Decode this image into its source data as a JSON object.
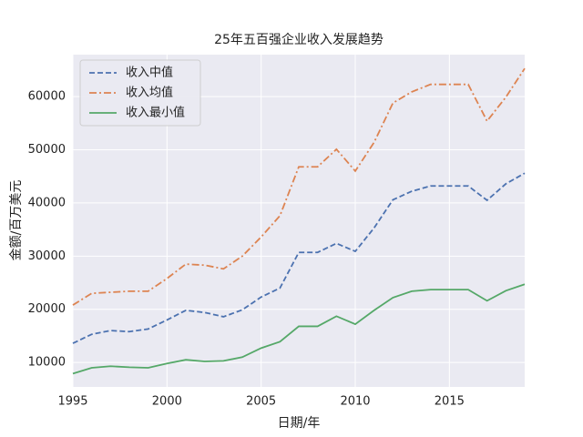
{
  "chart_data": {
    "type": "line",
    "title": "25年五百强企业收入发展趋势",
    "x_label": "日期/年",
    "y_label": "金额/百万美元",
    "x": [
      1995,
      1996,
      1997,
      1998,
      1999,
      2000,
      2001,
      2002,
      2003,
      2004,
      2005,
      2006,
      2007,
      2008,
      2009,
      2010,
      2011,
      2012,
      2013,
      2014,
      2015,
      2016,
      2017,
      2018,
      2019
    ],
    "series": [
      {
        "name": "收入中值",
        "color": "#4c72b0",
        "linestyle": "dashed",
        "values": [
          13600,
          15300,
          16000,
          15800,
          16300,
          18000,
          19800,
          19400,
          18600,
          19900,
          22300,
          24000,
          30700,
          30700,
          32400,
          30900,
          35300,
          40600,
          42200,
          43200,
          43200,
          43200,
          40500,
          43600,
          45600
        ]
      },
      {
        "name": "收入均值",
        "color": "#dd8452",
        "linestyle": "dashdot",
        "values": [
          20800,
          23000,
          23200,
          23400,
          23400,
          25800,
          28500,
          28300,
          27600,
          30000,
          33600,
          37600,
          46800,
          46800,
          50100,
          46000,
          51400,
          58800,
          60900,
          62300,
          62300,
          62300,
          55400,
          59900,
          65300
        ]
      },
      {
        "name": "收入最小值",
        "color": "#55a868",
        "linestyle": "solid",
        "values": [
          7900,
          9000,
          9300,
          9100,
          9000,
          9800,
          10500,
          10200,
          10300,
          11000,
          12700,
          13900,
          16800,
          16800,
          18700,
          17200,
          19800,
          22200,
          23400,
          23700,
          23700,
          23700,
          21600,
          23500,
          24700
        ]
      }
    ],
    "xlim": [
      1995,
      2019
    ],
    "xticks": [
      1995,
      2000,
      2005,
      2010,
      2015
    ],
    "ylim": [
      5400,
      67900
    ],
    "yticks": [
      10000,
      20000,
      30000,
      40000,
      50000,
      60000
    ],
    "grid": true,
    "legend": "upper left"
  }
}
